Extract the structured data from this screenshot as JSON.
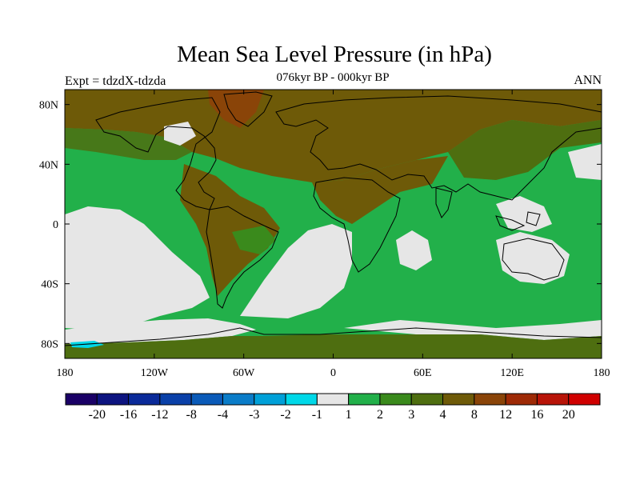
{
  "title": "Mean Sea Level Pressure (in hPa)",
  "subtitle": "076kyr BP - 000kyr BP",
  "left_label": "Expt = tdzdX-tdzda",
  "right_label": "ANN",
  "map": {
    "projection": "cylindrical-equidistant",
    "lon_range": [
      -180,
      180
    ],
    "lat_range": [
      -90,
      90
    ],
    "x_ticks": [
      {
        "value": -180,
        "label": "180"
      },
      {
        "value": -120,
        "label": "120W"
      },
      {
        "value": -60,
        "label": "60W"
      },
      {
        "value": 0,
        "label": "0"
      },
      {
        "value": 60,
        "label": "60E"
      },
      {
        "value": 120,
        "label": "120E"
      },
      {
        "value": 180,
        "label": "180"
      }
    ],
    "y_ticks": [
      {
        "value": 80,
        "label": "80N"
      },
      {
        "value": 40,
        "label": "40N"
      },
      {
        "value": 0,
        "label": "0"
      },
      {
        "value": -40,
        "label": "40S"
      },
      {
        "value": -80,
        "label": "80S"
      }
    ]
  },
  "colorbar": {
    "labels": [
      "-20",
      "-16",
      "-12",
      "-8",
      "-4",
      "-3",
      "-2",
      "-1",
      "1",
      "2",
      "3",
      "4",
      "8",
      "12",
      "16",
      "20"
    ],
    "colors": [
      "#1a0066",
      "#0d1480",
      "#0a2a99",
      "#0a40a8",
      "#0a5ab8",
      "#0a7cc8",
      "#00a0d8",
      "#00d8e8",
      "#e6e6e6",
      "#22b04a",
      "#3a8a1c",
      "#4e6e10",
      "#6e5a08",
      "#8a4408",
      "#9e2a06",
      "#b81408",
      "#d00000"
    ]
  }
}
